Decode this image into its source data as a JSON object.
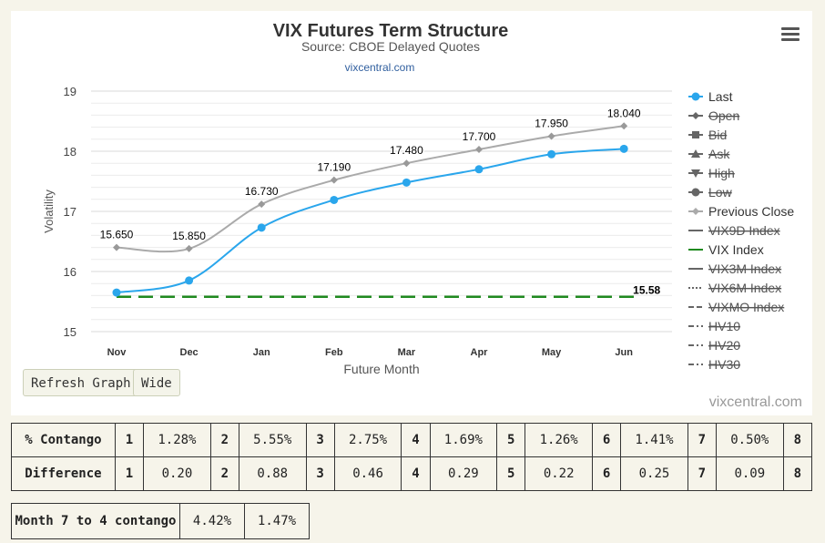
{
  "chart_data": {
    "type": "line",
    "title": "VIX Futures Term Structure",
    "subtitle": "Source: CBOE Delayed Quotes",
    "site_link": "vixcentral.com",
    "credit": "vixcentral.com",
    "xlabel": "Future Month",
    "ylabel": "Volatility",
    "categories": [
      "Nov",
      "Dec",
      "Jan",
      "Feb",
      "Mar",
      "Apr",
      "May",
      "Jun"
    ],
    "ylim": [
      15,
      19
    ],
    "yticks": [
      "15",
      "16",
      "17",
      "18",
      "19"
    ],
    "grid": true,
    "legend_position": "right",
    "series": [
      {
        "name": "Last",
        "values": [
          15.65,
          15.85,
          16.73,
          17.19,
          17.48,
          17.7,
          17.95,
          18.04
        ],
        "color": "#2aa6ec",
        "labels": [
          "15.650",
          "15.850",
          "16.730",
          "17.190",
          "17.480",
          "17.700",
          "17.950",
          "18.040"
        ]
      },
      {
        "name": "Previous Close",
        "values": [
          16.4,
          16.38,
          17.12,
          17.52,
          17.8,
          18.03,
          18.25,
          18.42
        ],
        "color": "#aaaaaa"
      },
      {
        "name": "VIX Index",
        "value": 15.58,
        "label": "15.58",
        "color": "#1f8a1f"
      }
    ],
    "legend": [
      {
        "name": "Last",
        "symbol": "circle",
        "color": "#2aa6ec",
        "visible": true
      },
      {
        "name": "Open",
        "symbol": "diamond",
        "color": "#666666",
        "visible": false
      },
      {
        "name": "Bid",
        "symbol": "square",
        "color": "#666666",
        "visible": false
      },
      {
        "name": "Ask",
        "symbol": "triangle-up",
        "color": "#666666",
        "visible": false
      },
      {
        "name": "High",
        "symbol": "triangle-down",
        "color": "#666666",
        "visible": false
      },
      {
        "name": "Low",
        "symbol": "circle",
        "color": "#666666",
        "visible": false
      },
      {
        "name": "Previous Close",
        "symbol": "diamond",
        "color": "#aaaaaa",
        "visible": true
      },
      {
        "name": "VIX9D Index",
        "symbol": "solid",
        "color": "#666666",
        "visible": false
      },
      {
        "name": "VIX Index",
        "symbol": "solid",
        "color": "#1f8a1f",
        "visible": true
      },
      {
        "name": "VIX3M Index",
        "symbol": "solid",
        "color": "#666666",
        "visible": false
      },
      {
        "name": "VIX6M Index",
        "symbol": "dotted",
        "color": "#666666",
        "visible": false
      },
      {
        "name": "VIXMO Index",
        "symbol": "dashed",
        "color": "#666666",
        "visible": false
      },
      {
        "name": "HV10",
        "symbol": "dashdot",
        "color": "#666666",
        "visible": false
      },
      {
        "name": "HV20",
        "symbol": "dashdot",
        "color": "#666666",
        "visible": false
      },
      {
        "name": "HV30",
        "symbol": "dashdot",
        "color": "#666666",
        "visible": false
      }
    ]
  },
  "buttons": {
    "refresh": "Refresh Graph",
    "wide": "Wide"
  },
  "contango": {
    "label": "% Contango",
    "cells": [
      {
        "index": "1",
        "value": "1.28%"
      },
      {
        "index": "2",
        "value": "5.55%"
      },
      {
        "index": "3",
        "value": "2.75%"
      },
      {
        "index": "4",
        "value": "1.69%"
      },
      {
        "index": "5",
        "value": "1.26%"
      },
      {
        "index": "6",
        "value": "1.41%"
      },
      {
        "index": "7",
        "value": "0.50%"
      }
    ],
    "last_index": "8"
  },
  "difference": {
    "label": "Difference",
    "cells": [
      {
        "index": "1",
        "value": "0.20"
      },
      {
        "index": "2",
        "value": "0.88"
      },
      {
        "index": "3",
        "value": "0.46"
      },
      {
        "index": "4",
        "value": "0.29"
      },
      {
        "index": "5",
        "value": "0.22"
      },
      {
        "index": "6",
        "value": "0.25"
      },
      {
        "index": "7",
        "value": "0.09"
      }
    ],
    "last_index": "8"
  },
  "month_contango": {
    "label": "Month 7 to 4 contango",
    "value1": "4.42%",
    "value2": "1.47%"
  }
}
